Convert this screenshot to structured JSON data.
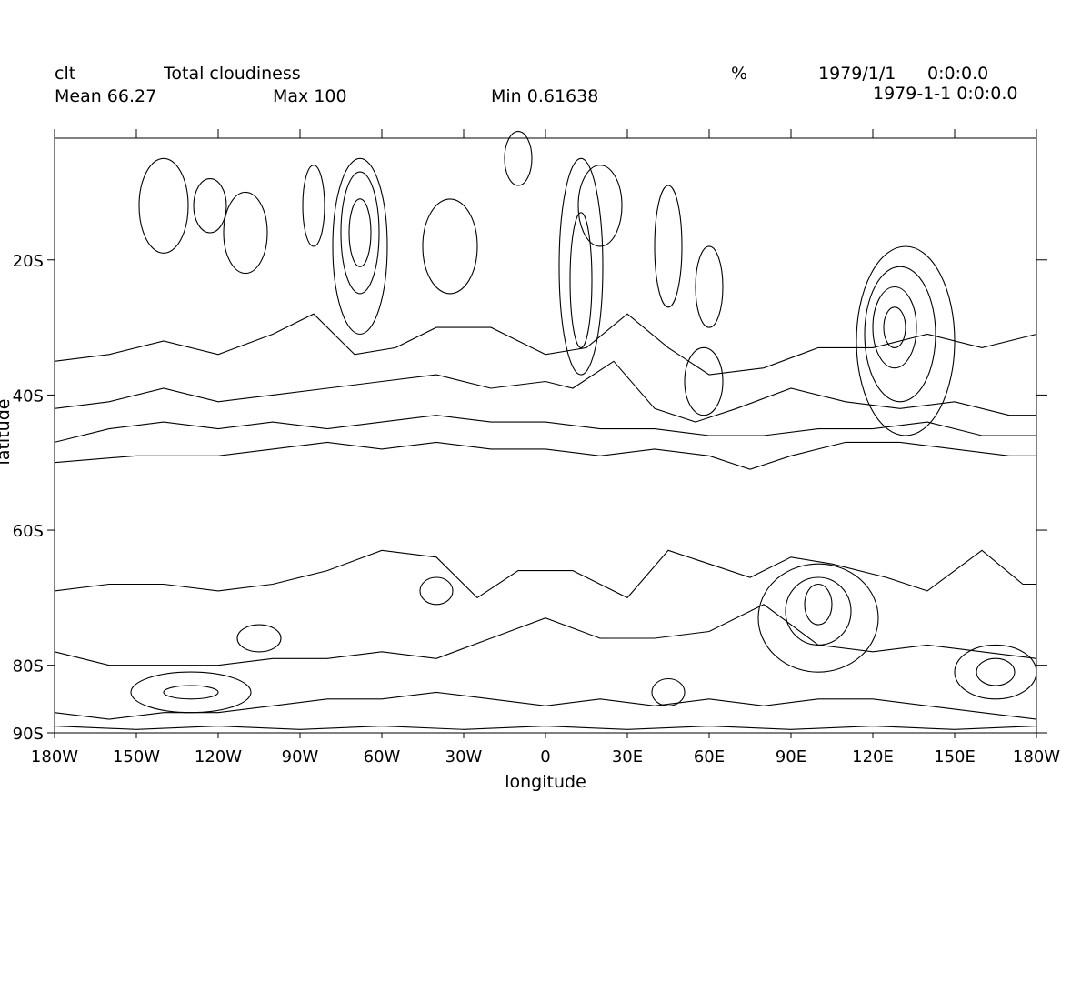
{
  "header": {
    "variable": "clt",
    "long_name": "Total cloudiness",
    "units": "%",
    "date": "1979/1/1",
    "time": "0:0:0.0",
    "mean": "Mean 66.27",
    "max": "Max 100",
    "min": "Min 0.61638",
    "timestamp": "1979-1-1 0:0:0.0"
  },
  "chart_data": {
    "type": "contour",
    "title": "Total cloudiness",
    "xlabel": "longitude",
    "ylabel": "latitude",
    "xlim": [
      -180,
      180
    ],
    "ylim": [
      -90,
      -2
    ],
    "x_ticks": [
      {
        "value": -180,
        "label": "180W"
      },
      {
        "value": -150,
        "label": "150W"
      },
      {
        "value": -120,
        "label": "120W"
      },
      {
        "value": -90,
        "label": "90W"
      },
      {
        "value": -60,
        "label": "60W"
      },
      {
        "value": -30,
        "label": "30W"
      },
      {
        "value": 0,
        "label": "0"
      },
      {
        "value": 30,
        "label": "30E"
      },
      {
        "value": 60,
        "label": "60E"
      },
      {
        "value": 90,
        "label": "90E"
      },
      {
        "value": 120,
        "label": "120E"
      },
      {
        "value": 150,
        "label": "150E"
      },
      {
        "value": 180,
        "label": "180W"
      }
    ],
    "y_ticks": [
      {
        "value": -20,
        "label": "20S"
      },
      {
        "value": -40,
        "label": "40S"
      },
      {
        "value": -60,
        "label": "60S"
      },
      {
        "value": -80,
        "label": "80S"
      },
      {
        "value": -90,
        "label": "90S"
      }
    ],
    "grid": false,
    "stats": {
      "mean": 66.27,
      "max": 100,
      "min": 0.61638
    },
    "contour_lines": [
      {
        "lat": -52,
        "points": [
          [
            -180,
            -50
          ],
          [
            -150,
            -49
          ],
          [
            -120,
            -49
          ],
          [
            -100,
            -48
          ],
          [
            -80,
            -47
          ],
          [
            -60,
            -48
          ],
          [
            -40,
            -47
          ],
          [
            -20,
            -48
          ],
          [
            0,
            -48
          ],
          [
            20,
            -49
          ],
          [
            40,
            -48
          ],
          [
            60,
            -49
          ],
          [
            75,
            -51
          ],
          [
            90,
            -49
          ],
          [
            110,
            -47
          ],
          [
            130,
            -47
          ],
          [
            150,
            -48
          ],
          [
            170,
            -49
          ],
          [
            180,
            -49
          ]
        ]
      },
      {
        "lat": -47,
        "points": [
          [
            -180,
            -47
          ],
          [
            -160,
            -45
          ],
          [
            -140,
            -44
          ],
          [
            -120,
            -45
          ],
          [
            -100,
            -44
          ],
          [
            -80,
            -45
          ],
          [
            -60,
            -44
          ],
          [
            -40,
            -43
          ],
          [
            -20,
            -44
          ],
          [
            0,
            -44
          ],
          [
            20,
            -45
          ],
          [
            40,
            -45
          ],
          [
            60,
            -46
          ],
          [
            80,
            -46
          ],
          [
            100,
            -45
          ],
          [
            120,
            -45
          ],
          [
            140,
            -44
          ],
          [
            160,
            -46
          ],
          [
            180,
            -46
          ]
        ]
      },
      {
        "lat": -44,
        "points": [
          [
            -180,
            -42
          ],
          [
            -160,
            -41
          ],
          [
            -140,
            -39
          ],
          [
            -120,
            -41
          ],
          [
            -100,
            -40
          ],
          [
            -80,
            -39
          ],
          [
            -60,
            -38
          ],
          [
            -40,
            -37
          ],
          [
            -20,
            -39
          ],
          [
            0,
            -38
          ],
          [
            10,
            -39
          ],
          [
            25,
            -35
          ],
          [
            40,
            -42
          ],
          [
            55,
            -44
          ],
          [
            70,
            -42
          ],
          [
            90,
            -39
          ],
          [
            110,
            -41
          ],
          [
            130,
            -42
          ],
          [
            150,
            -41
          ],
          [
            170,
            -43
          ],
          [
            180,
            -43
          ]
        ]
      },
      {
        "lat": -38,
        "points": [
          [
            -180,
            -35
          ],
          [
            -160,
            -34
          ],
          [
            -140,
            -32
          ],
          [
            -120,
            -34
          ],
          [
            -100,
            -31
          ],
          [
            -85,
            -28
          ],
          [
            -70,
            -34
          ],
          [
            -55,
            -33
          ],
          [
            -40,
            -30
          ],
          [
            -20,
            -30
          ],
          [
            0,
            -34
          ],
          [
            15,
            -33
          ],
          [
            30,
            -28
          ],
          [
            45,
            -33
          ],
          [
            60,
            -37
          ],
          [
            80,
            -36
          ],
          [
            100,
            -33
          ],
          [
            120,
            -33
          ],
          [
            140,
            -31
          ],
          [
            160,
            -33
          ],
          [
            180,
            -31
          ]
        ]
      },
      {
        "lat": -75,
        "points": [
          [
            -180,
            -69
          ],
          [
            -160,
            -68
          ],
          [
            -140,
            -68
          ],
          [
            -120,
            -69
          ],
          [
            -100,
            -68
          ],
          [
            -80,
            -66
          ],
          [
            -60,
            -63
          ],
          [
            -40,
            -64
          ],
          [
            -25,
            -70
          ],
          [
            -10,
            -66
          ],
          [
            10,
            -66
          ],
          [
            30,
            -70
          ],
          [
            45,
            -63
          ],
          [
            60,
            -65
          ],
          [
            75,
            -67
          ],
          [
            90,
            -64
          ],
          [
            105,
            -65
          ],
          [
            125,
            -67
          ],
          [
            140,
            -69
          ],
          [
            160,
            -63
          ],
          [
            175,
            -68
          ],
          [
            180,
            -68
          ]
        ]
      },
      {
        "lat": -78,
        "points": [
          [
            -180,
            -78
          ],
          [
            -160,
            -80
          ],
          [
            -140,
            -80
          ],
          [
            -120,
            -80
          ],
          [
            -100,
            -79
          ],
          [
            -80,
            -79
          ],
          [
            -60,
            -78
          ],
          [
            -40,
            -79
          ],
          [
            -20,
            -76
          ],
          [
            0,
            -73
          ],
          [
            20,
            -76
          ],
          [
            40,
            -76
          ],
          [
            60,
            -75
          ],
          [
            80,
            -71
          ],
          [
            100,
            -77
          ],
          [
            120,
            -78
          ],
          [
            140,
            -77
          ],
          [
            160,
            -78
          ],
          [
            180,
            -79
          ]
        ]
      },
      {
        "lat": -85,
        "points": [
          [
            -180,
            -87
          ],
          [
            -160,
            -88
          ],
          [
            -140,
            -87
          ],
          [
            -120,
            -87
          ],
          [
            -100,
            -86
          ],
          [
            -80,
            -85
          ],
          [
            -60,
            -85
          ],
          [
            -40,
            -84
          ],
          [
            -20,
            -85
          ],
          [
            0,
            -86
          ],
          [
            20,
            -85
          ],
          [
            40,
            -86
          ],
          [
            60,
            -85
          ],
          [
            80,
            -86
          ],
          [
            100,
            -85
          ],
          [
            120,
            -85
          ],
          [
            140,
            -86
          ],
          [
            160,
            -87
          ],
          [
            180,
            -88
          ]
        ]
      },
      {
        "lat": -89,
        "points": [
          [
            -180,
            -89
          ],
          [
            -150,
            -89.5
          ],
          [
            -120,
            -89
          ],
          [
            -90,
            -89.5
          ],
          [
            -60,
            -89
          ],
          [
            -30,
            -89.5
          ],
          [
            0,
            -89
          ],
          [
            30,
            -89.5
          ],
          [
            60,
            -89
          ],
          [
            90,
            -89.5
          ],
          [
            120,
            -89
          ],
          [
            150,
            -89.5
          ],
          [
            180,
            -89
          ]
        ]
      }
    ],
    "closed_contours": [
      {
        "cx": -68,
        "cy": -16,
        "rx": 4,
        "ry": 5
      },
      {
        "cx": -68,
        "cy": -16,
        "rx": 7,
        "ry": 9
      },
      {
        "cx": -68,
        "cy": -18,
        "rx": 10,
        "ry": 13
      },
      {
        "cx": -85,
        "cy": -12,
        "rx": 4,
        "ry": 6
      },
      {
        "cx": -110,
        "cy": -16,
        "rx": 8,
        "ry": 6
      },
      {
        "cx": -140,
        "cy": -12,
        "rx": 9,
        "ry": 7
      },
      {
        "cx": -123,
        "cy": -12,
        "rx": 6,
        "ry": 4
      },
      {
        "cx": 13,
        "cy": -23,
        "rx": 4,
        "ry": 10
      },
      {
        "cx": 13,
        "cy": -21,
        "rx": 8,
        "ry": 16
      },
      {
        "cx": 20,
        "cy": -12,
        "rx": 8,
        "ry": 6
      },
      {
        "cx": 45,
        "cy": -18,
        "rx": 5,
        "ry": 9
      },
      {
        "cx": 60,
        "cy": -24,
        "rx": 5,
        "ry": 6
      },
      {
        "cx": 58,
        "cy": -38,
        "rx": 7,
        "ry": 5
      },
      {
        "cx": 128,
        "cy": -30,
        "rx": 4,
        "ry": 3
      },
      {
        "cx": 128,
        "cy": -30,
        "rx": 8,
        "ry": 6
      },
      {
        "cx": 130,
        "cy": -31,
        "rx": 13,
        "ry": 10
      },
      {
        "cx": 132,
        "cy": -32,
        "rx": 18,
        "ry": 14
      },
      {
        "cx": -35,
        "cy": -18,
        "rx": 10,
        "ry": 7
      },
      {
        "cx": -10,
        "cy": -5,
        "rx": 5,
        "ry": 4
      },
      {
        "cx": 100,
        "cy": -71,
        "rx": 5,
        "ry": 3
      },
      {
        "cx": 100,
        "cy": -72,
        "rx": 12,
        "ry": 5
      },
      {
        "cx": 100,
        "cy": -73,
        "rx": 22,
        "ry": 8
      },
      {
        "cx": -130,
        "cy": -84,
        "rx": 10,
        "ry": 1
      },
      {
        "cx": -130,
        "cy": -84,
        "rx": 22,
        "ry": 3
      },
      {
        "cx": 165,
        "cy": -81,
        "rx": 7,
        "ry": 2
      },
      {
        "cx": 165,
        "cy": -81,
        "rx": 15,
        "ry": 4
      },
      {
        "cx": -105,
        "cy": -76,
        "rx": 8,
        "ry": 2
      },
      {
        "cx": -40,
        "cy": -69,
        "rx": 6,
        "ry": 2
      },
      {
        "cx": 45,
        "cy": -84,
        "rx": 6,
        "ry": 2
      }
    ]
  }
}
